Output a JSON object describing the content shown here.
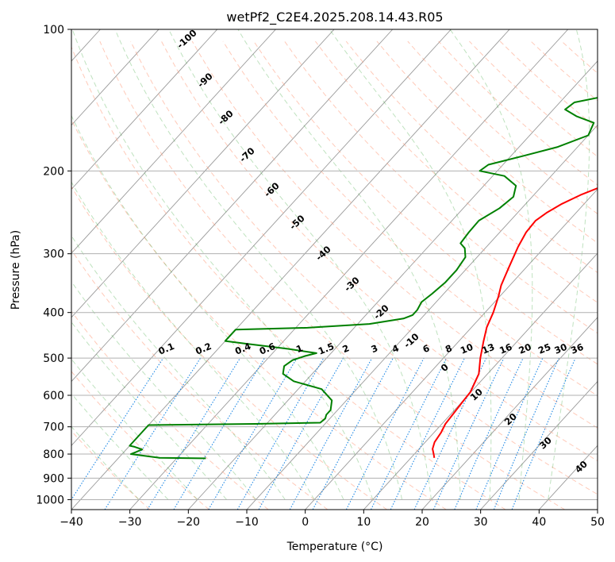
{
  "chart_data": {
    "type": "line",
    "title": "wetPf2_C2E4.2025.208.14.43.R05",
    "xlabel": "Temperature (°C)",
    "ylabel": "Pressure (hPa)",
    "xlim": [
      -40,
      50
    ],
    "ylim": [
      1050,
      100
    ],
    "y_scale": "log",
    "x_ticks": [
      -40,
      -30,
      -20,
      -10,
      0,
      10,
      20,
      30,
      40,
      50
    ],
    "y_ticks": [
      100,
      200,
      300,
      400,
      500,
      600,
      700,
      800,
      900,
      1000
    ],
    "grid": true,
    "colors": {
      "temperature": "#ff0000",
      "dewpoint": "#008000",
      "dry_adiabat": "#ff7f50",
      "moist_adiabat": "#2ca02c",
      "mixing_ratio": "#1e88e5",
      "skewed_isotherm": "#777777",
      "hidden_label_blue": "#1f77b4",
      "label_red": "#d62728"
    },
    "series": [
      {
        "name": "",
        "color": "#ff0000",
        "points": [
          [
            14.0,
            815
          ],
          [
            13.3,
            800
          ],
          [
            12.3,
            780
          ],
          [
            11.6,
            755
          ],
          [
            11.2,
            720
          ],
          [
            10.6,
            690
          ],
          [
            10.4,
            660
          ],
          [
            10.1,
            620
          ],
          [
            9.9,
            590
          ],
          [
            8.5,
            540
          ],
          [
            6.3,
            500
          ],
          [
            4.2,
            460
          ],
          [
            2.6,
            430
          ],
          [
            1.4,
            400
          ],
          [
            -0.2,
            370
          ],
          [
            -1.5,
            350
          ],
          [
            -3.0,
            320
          ],
          [
            -4.6,
            290
          ],
          [
            -5.5,
            270
          ],
          [
            -5.7,
            255
          ],
          [
            -5.0,
            245
          ],
          [
            -3.8,
            235
          ],
          [
            -2.0,
            225
          ],
          [
            0.5,
            215
          ],
          [
            4.0,
            203
          ],
          [
            6.6,
            195
          ],
          [
            8.4,
            185
          ],
          [
            9.8,
            175
          ],
          [
            11.2,
            165
          ],
          [
            13.3,
            155
          ],
          [
            16.2,
            145
          ],
          [
            17.8,
            138
          ],
          [
            18.2,
            132
          ],
          [
            18.6,
            124
          ],
          [
            19.3,
            118
          ],
          [
            20.8,
            110
          ],
          [
            22.6,
            104
          ],
          [
            23.2,
            100
          ]
        ]
      },
      {
        "name": "",
        "color": "#008000",
        "points": [
          [
            -25.0,
            817
          ],
          [
            -33.0,
            815
          ],
          [
            -38.5,
            800
          ],
          [
            -38.0,
            793
          ],
          [
            -37.3,
            782
          ],
          [
            -39.0,
            772
          ],
          [
            -40,
            768
          ],
          [
            -40,
            694
          ],
          [
            -22.0,
            690
          ],
          [
            -11.0,
            686
          ],
          [
            -10.8,
            672
          ],
          [
            -11.2,
            660
          ],
          [
            -11.2,
            645
          ],
          [
            -12.5,
            615
          ],
          [
            -16.0,
            582
          ],
          [
            -22.0,
            560
          ],
          [
            -25.0,
            540
          ],
          [
            -26.0,
            520
          ],
          [
            -25.5,
            505
          ],
          [
            -24.0,
            495
          ],
          [
            -22.5,
            488
          ],
          [
            -28.0,
            478
          ],
          [
            -36.0,
            466
          ],
          [
            -40,
            460
          ],
          [
            -40,
            435
          ],
          [
            -28.0,
            431
          ],
          [
            -18.0,
            423
          ],
          [
            -13.0,
            412
          ],
          [
            -12.0,
            405
          ],
          [
            -12.0,
            395
          ],
          [
            -12.5,
            380
          ],
          [
            -12.0,
            365
          ],
          [
            -11.5,
            345
          ],
          [
            -11.5,
            325
          ],
          [
            -12.0,
            305
          ],
          [
            -13.5,
            292
          ],
          [
            -15.0,
            285
          ],
          [
            -15.3,
            270
          ],
          [
            -15.4,
            255
          ],
          [
            -13.8,
            240
          ],
          [
            -13.2,
            227
          ],
          [
            -14.5,
            215
          ],
          [
            -18.0,
            205
          ],
          [
            -23.0,
            200
          ],
          [
            -22.5,
            194
          ],
          [
            -18.0,
            186
          ],
          [
            -13.5,
            178
          ],
          [
            -10.0,
            168
          ],
          [
            -11.0,
            158
          ],
          [
            -15.0,
            153
          ],
          [
            -18.0,
            148
          ],
          [
            -17.5,
            143
          ],
          [
            -12.5,
            138
          ],
          [
            -9.0,
            134
          ],
          [
            -7.5,
            128
          ],
          [
            -6.0,
            120
          ],
          [
            -4.5,
            112
          ],
          [
            -1.5,
            106
          ],
          [
            0.0,
            100
          ]
        ]
      }
    ],
    "isotherm_labels": [
      "-100",
      "-90",
      "-80",
      "-70",
      "-60",
      "-50",
      "-40",
      "-30",
      "-20",
      "-10",
      "0",
      "10",
      "20",
      "30",
      "40"
    ],
    "mixing_ratio_labels": [
      "0.1",
      "0.2",
      "0.4",
      "0.6",
      "1",
      "1.5",
      "2",
      "3",
      "4",
      "6",
      "8",
      "10",
      "13",
      "16",
      "20",
      "25",
      "30",
      "36"
    ]
  }
}
